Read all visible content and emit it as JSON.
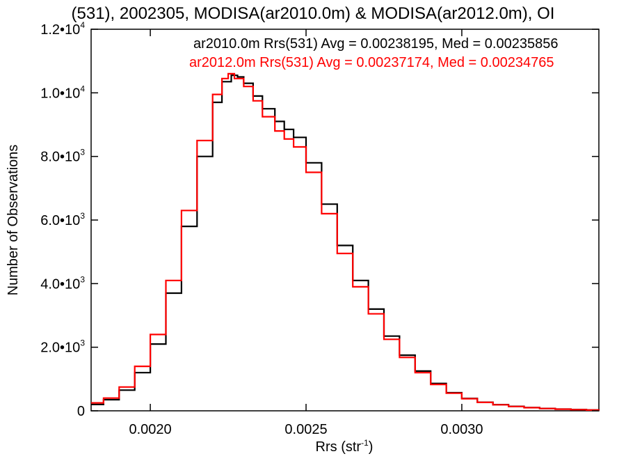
{
  "chart_data": {
    "type": "line",
    "step": true,
    "title": "(531), 2002305, MODISA(ar2010.0m) & MODISA(ar2012.0m), OI",
    "xlabel": {
      "main": "Rrs (str",
      "sup": "-1",
      "close": ")"
    },
    "ylabel": "Number of Observations",
    "xlim": [
      0.00181,
      0.00344
    ],
    "ylim": [
      0,
      12000
    ],
    "x_ticks": [
      {
        "value": 0.002,
        "label": "0.0020"
      },
      {
        "value": 0.0025,
        "label": "0.0025"
      },
      {
        "value": 0.003,
        "label": "0.0030"
      }
    ],
    "y_ticks": [
      {
        "value": 0,
        "mant": "0",
        "exp": ""
      },
      {
        "value": 2000,
        "mant": "2.0•10",
        "exp": "3"
      },
      {
        "value": 4000,
        "mant": "4.0•10",
        "exp": "3"
      },
      {
        "value": 6000,
        "mant": "6.0•10",
        "exp": "3"
      },
      {
        "value": 8000,
        "mant": "8.0•10",
        "exp": "3"
      },
      {
        "value": 10000,
        "mant": "1.0•10",
        "exp": "4"
      },
      {
        "value": 12000,
        "mant": "1.2•10",
        "exp": "4"
      }
    ],
    "series": [
      {
        "name": "ar2010.0m",
        "legend": "ar2010.0m Rrs(531) Avg = 0.00238195, Med = 0.00235856",
        "color": "#000000",
        "x": [
          0.00181,
          0.00185,
          0.0019,
          0.00195,
          0.002,
          0.00205,
          0.0021,
          0.00215,
          0.0022,
          0.00223,
          0.00226,
          0.00228,
          0.0023,
          0.00233,
          0.00236,
          0.0024,
          0.00243,
          0.00246,
          0.0025,
          0.00255,
          0.0026,
          0.00265,
          0.0027,
          0.00275,
          0.0028,
          0.00285,
          0.0029,
          0.00295,
          0.003,
          0.00305,
          0.0031,
          0.00315,
          0.0032,
          0.00325,
          0.0033,
          0.00335,
          0.0034,
          0.00344
        ],
        "y": [
          200,
          350,
          650,
          1200,
          2100,
          3700,
          5800,
          8000,
          9700,
          10350,
          10550,
          10500,
          10300,
          9900,
          9500,
          9100,
          8850,
          8600,
          7800,
          6500,
          5200,
          4100,
          3200,
          2350,
          1750,
          1250,
          860,
          570,
          390,
          270,
          195,
          140,
          100,
          75,
          55,
          40,
          25,
          15
        ]
      },
      {
        "name": "ar2012.0m",
        "legend": "ar2012.0m Rrs(531) Avg = 0.00237174, Med = 0.00234765",
        "color": "#ff0000",
        "x": [
          0.00181,
          0.00185,
          0.0019,
          0.00195,
          0.002,
          0.00205,
          0.0021,
          0.00215,
          0.0022,
          0.00223,
          0.00225,
          0.00227,
          0.0023,
          0.00233,
          0.00236,
          0.0024,
          0.00243,
          0.00246,
          0.0025,
          0.00255,
          0.0026,
          0.00265,
          0.0027,
          0.00275,
          0.0028,
          0.00285,
          0.0029,
          0.00295,
          0.003,
          0.00305,
          0.0031,
          0.00315,
          0.0032,
          0.00325,
          0.0033,
          0.00335,
          0.0034,
          0.00344
        ],
        "y": [
          250,
          400,
          750,
          1400,
          2400,
          4100,
          6300,
          8500,
          9950,
          10450,
          10600,
          10450,
          10200,
          9750,
          9250,
          8800,
          8550,
          8300,
          7500,
          6200,
          4950,
          3900,
          3050,
          2250,
          1680,
          1200,
          830,
          555,
          380,
          265,
          190,
          135,
          98,
          72,
          52,
          38,
          24,
          14
        ]
      }
    ]
  }
}
